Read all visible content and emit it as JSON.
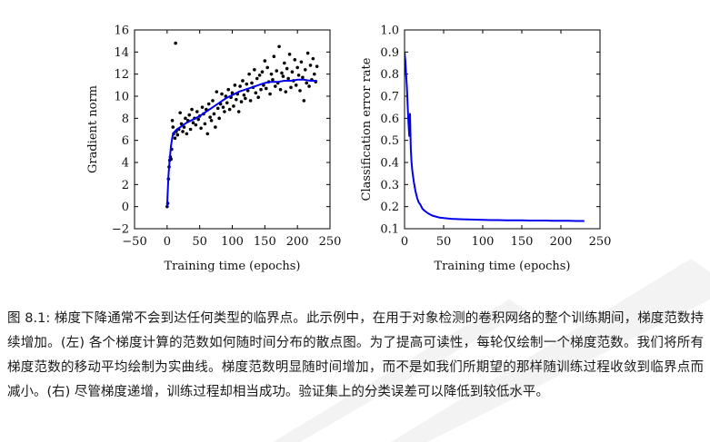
{
  "chart_data": [
    {
      "type": "scatter",
      "title": "",
      "xlabel": "Training time (epochs)",
      "ylabel": "Gradient norm",
      "xlim": [
        -50,
        250
      ],
      "ylim": [
        -2,
        16
      ],
      "xticks": [
        "−50",
        "0",
        "50",
        "100",
        "150",
        "200",
        "250"
      ],
      "yticks": [
        "−2",
        "0",
        "2",
        "4",
        "6",
        "8",
        "10",
        "12",
        "14",
        "16"
      ],
      "grid": false,
      "series": [
        {
          "kind": "scatter",
          "color": "#000000",
          "points": [
            [
              0,
              0
            ],
            [
              1,
              0.3
            ],
            [
              2,
              2.5
            ],
            [
              3,
              3.6
            ],
            [
              4,
              4.2
            ],
            [
              5,
              4.5
            ],
            [
              6,
              4.3
            ],
            [
              7,
              5.2
            ],
            [
              8,
              7.8
            ],
            [
              9,
              7.2
            ],
            [
              10,
              6.6
            ],
            [
              12,
              6.2
            ],
            [
              13,
              14.8
            ],
            [
              14,
              6.8
            ],
            [
              16,
              6.5
            ],
            [
              18,
              7.0
            ],
            [
              20,
              8.5
            ],
            [
              22,
              7.5
            ],
            [
              24,
              6.8
            ],
            [
              26,
              7.2
            ],
            [
              28,
              8.0
            ],
            [
              30,
              6.6
            ],
            [
              32,
              7.8
            ],
            [
              34,
              8.3
            ],
            [
              36,
              7.0
            ],
            [
              38,
              8.8
            ],
            [
              40,
              7.6
            ],
            [
              42,
              8.0
            ],
            [
              44,
              7.4
            ],
            [
              46,
              8.6
            ],
            [
              48,
              7.9
            ],
            [
              50,
              8.2
            ],
            [
              52,
              7.1
            ],
            [
              54,
              9.0
            ],
            [
              56,
              8.4
            ],
            [
              58,
              7.5
            ],
            [
              60,
              8.8
            ],
            [
              62,
              6.6
            ],
            [
              64,
              9.3
            ],
            [
              66,
              8.1
            ],
            [
              68,
              7.8
            ],
            [
              70,
              9.6
            ],
            [
              72,
              8.4
            ],
            [
              74,
              7.2
            ],
            [
              76,
              10.4
            ],
            [
              78,
              8.9
            ],
            [
              80,
              8.0
            ],
            [
              82,
              9.3
            ],
            [
              84,
              10.2
            ],
            [
              86,
              9.0
            ],
            [
              88,
              8.6
            ],
            [
              90,
              10.0
            ],
            [
              92,
              9.4
            ],
            [
              94,
              10.6
            ],
            [
              96,
              8.8
            ],
            [
              98,
              9.9
            ],
            [
              100,
              10.3
            ],
            [
              102,
              9.1
            ],
            [
              104,
              11.0
            ],
            [
              106,
              9.7
            ],
            [
              108,
              10.2
            ],
            [
              110,
              8.6
            ],
            [
              112,
              10.9
            ],
            [
              114,
              9.5
            ],
            [
              116,
              11.4
            ],
            [
              118,
              10.1
            ],
            [
              120,
              9.8
            ],
            [
              122,
              11.1
            ],
            [
              124,
              10.5
            ],
            [
              126,
              12.0
            ],
            [
              128,
              9.6
            ],
            [
              130,
              11.2
            ],
            [
              132,
              10.8
            ],
            [
              134,
              12.4
            ],
            [
              136,
              10.3
            ],
            [
              138,
              11.6
            ],
            [
              140,
              9.9
            ],
            [
              142,
              11.9
            ],
            [
              144,
              10.6
            ],
            [
              146,
              12.2
            ],
            [
              148,
              11.0
            ],
            [
              150,
              13.2
            ],
            [
              152,
              10.7
            ],
            [
              154,
              12.6
            ],
            [
              156,
              11.3
            ],
            [
              158,
              10.2
            ],
            [
              160,
              12.0
            ],
            [
              162,
              11.5
            ],
            [
              164,
              13.6
            ],
            [
              166,
              10.9
            ],
            [
              168,
              12.3
            ],
            [
              170,
              11.2
            ],
            [
              172,
              14.5
            ],
            [
              174,
              10.6
            ],
            [
              176,
              12.1
            ],
            [
              178,
              11.8
            ],
            [
              180,
              13.0
            ],
            [
              182,
              10.4
            ],
            [
              184,
              12.5
            ],
            [
              186,
              11.6
            ],
            [
              188,
              13.8
            ],
            [
              190,
              10.8
            ],
            [
              192,
              12.2
            ],
            [
              194,
              11.4
            ],
            [
              196,
              13.3
            ],
            [
              198,
              11.0
            ],
            [
              200,
              12.6
            ],
            [
              202,
              11.9
            ],
            [
              204,
              10.5
            ],
            [
              206,
              13.1
            ],
            [
              208,
              11.7
            ],
            [
              210,
              9.6
            ],
            [
              212,
              12.4
            ],
            [
              214,
              11.2
            ],
            [
              216,
              13.9
            ],
            [
              218,
              10.9
            ],
            [
              220,
              12.8
            ],
            [
              222,
              11.5
            ],
            [
              224,
              13.4
            ],
            [
              226,
              12.0
            ],
            [
              228,
              11.3
            ],
            [
              230,
              12.7
            ]
          ]
        },
        {
          "kind": "line",
          "name": "",
          "color": "#0000ee",
          "x": [
            0,
            2,
            4,
            6,
            8,
            10,
            15,
            20,
            25,
            30,
            40,
            50,
            60,
            70,
            80,
            90,
            100,
            110,
            120,
            130,
            140,
            150,
            160,
            170,
            180,
            190,
            200,
            210,
            220,
            230
          ],
          "y": [
            0,
            2.8,
            4.3,
            5.5,
            6.3,
            6.7,
            7.0,
            7.2,
            7.4,
            7.6,
            7.9,
            8.2,
            8.6,
            9.0,
            9.4,
            9.8,
            10.1,
            10.4,
            10.6,
            10.8,
            11.0,
            11.2,
            11.3,
            11.3,
            11.4,
            11.4,
            11.5,
            11.5,
            11.4,
            11.4
          ]
        }
      ]
    },
    {
      "type": "line",
      "title": "",
      "xlabel": "Training time (epochs)",
      "ylabel": "Classification error rate",
      "xlim": [
        0,
        250
      ],
      "ylim": [
        0.1,
        1.0
      ],
      "xticks": [
        "0",
        "50",
        "100",
        "150",
        "200",
        "250"
      ],
      "yticks": [
        "0.1",
        "0.2",
        "0.3",
        "0.4",
        "0.5",
        "0.6",
        "0.7",
        "0.8",
        "0.9",
        "1.0"
      ],
      "grid": false,
      "series": [
        {
          "kind": "line",
          "name": "",
          "color": "#0000ee",
          "x": [
            0,
            1,
            2,
            3,
            4,
            5,
            6,
            7,
            8,
            9,
            10,
            12,
            14,
            16,
            18,
            20,
            23,
            26,
            30,
            35,
            40,
            45,
            50,
            60,
            70,
            80,
            90,
            100,
            110,
            120,
            130,
            140,
            150,
            160,
            170,
            180,
            190,
            200,
            210,
            220,
            230
          ],
          "y": [
            0.9,
            0.86,
            0.8,
            0.74,
            0.66,
            0.58,
            0.52,
            0.62,
            0.46,
            0.4,
            0.36,
            0.31,
            0.27,
            0.24,
            0.22,
            0.21,
            0.19,
            0.18,
            0.17,
            0.16,
            0.155,
            0.15,
            0.148,
            0.145,
            0.143,
            0.142,
            0.141,
            0.14,
            0.139,
            0.139,
            0.138,
            0.138,
            0.138,
            0.137,
            0.137,
            0.137,
            0.136,
            0.136,
            0.136,
            0.135,
            0.135
          ]
        }
      ]
    }
  ],
  "caption": {
    "label": "图 8.1:",
    "text": "梯度下降通常不会到达任何类型的临界点。此示例中，在用于对象检测的卷积网络的整个训练期间，梯度范数持续增加。(左) 各个梯度计算的范数如何随时间分布的散点图。为了提高可读性，每轮仅绘制一个梯度范数。我们将所有梯度范数的移动平均绘制为实曲线。梯度范数明显随时间增加，而不是如我们所期望的那样随训练过程收敛到临界点而减小。(右) 尽管梯度递增，训练过程却相当成功。验证集上的分类误差可以降低到较低水平。"
  }
}
